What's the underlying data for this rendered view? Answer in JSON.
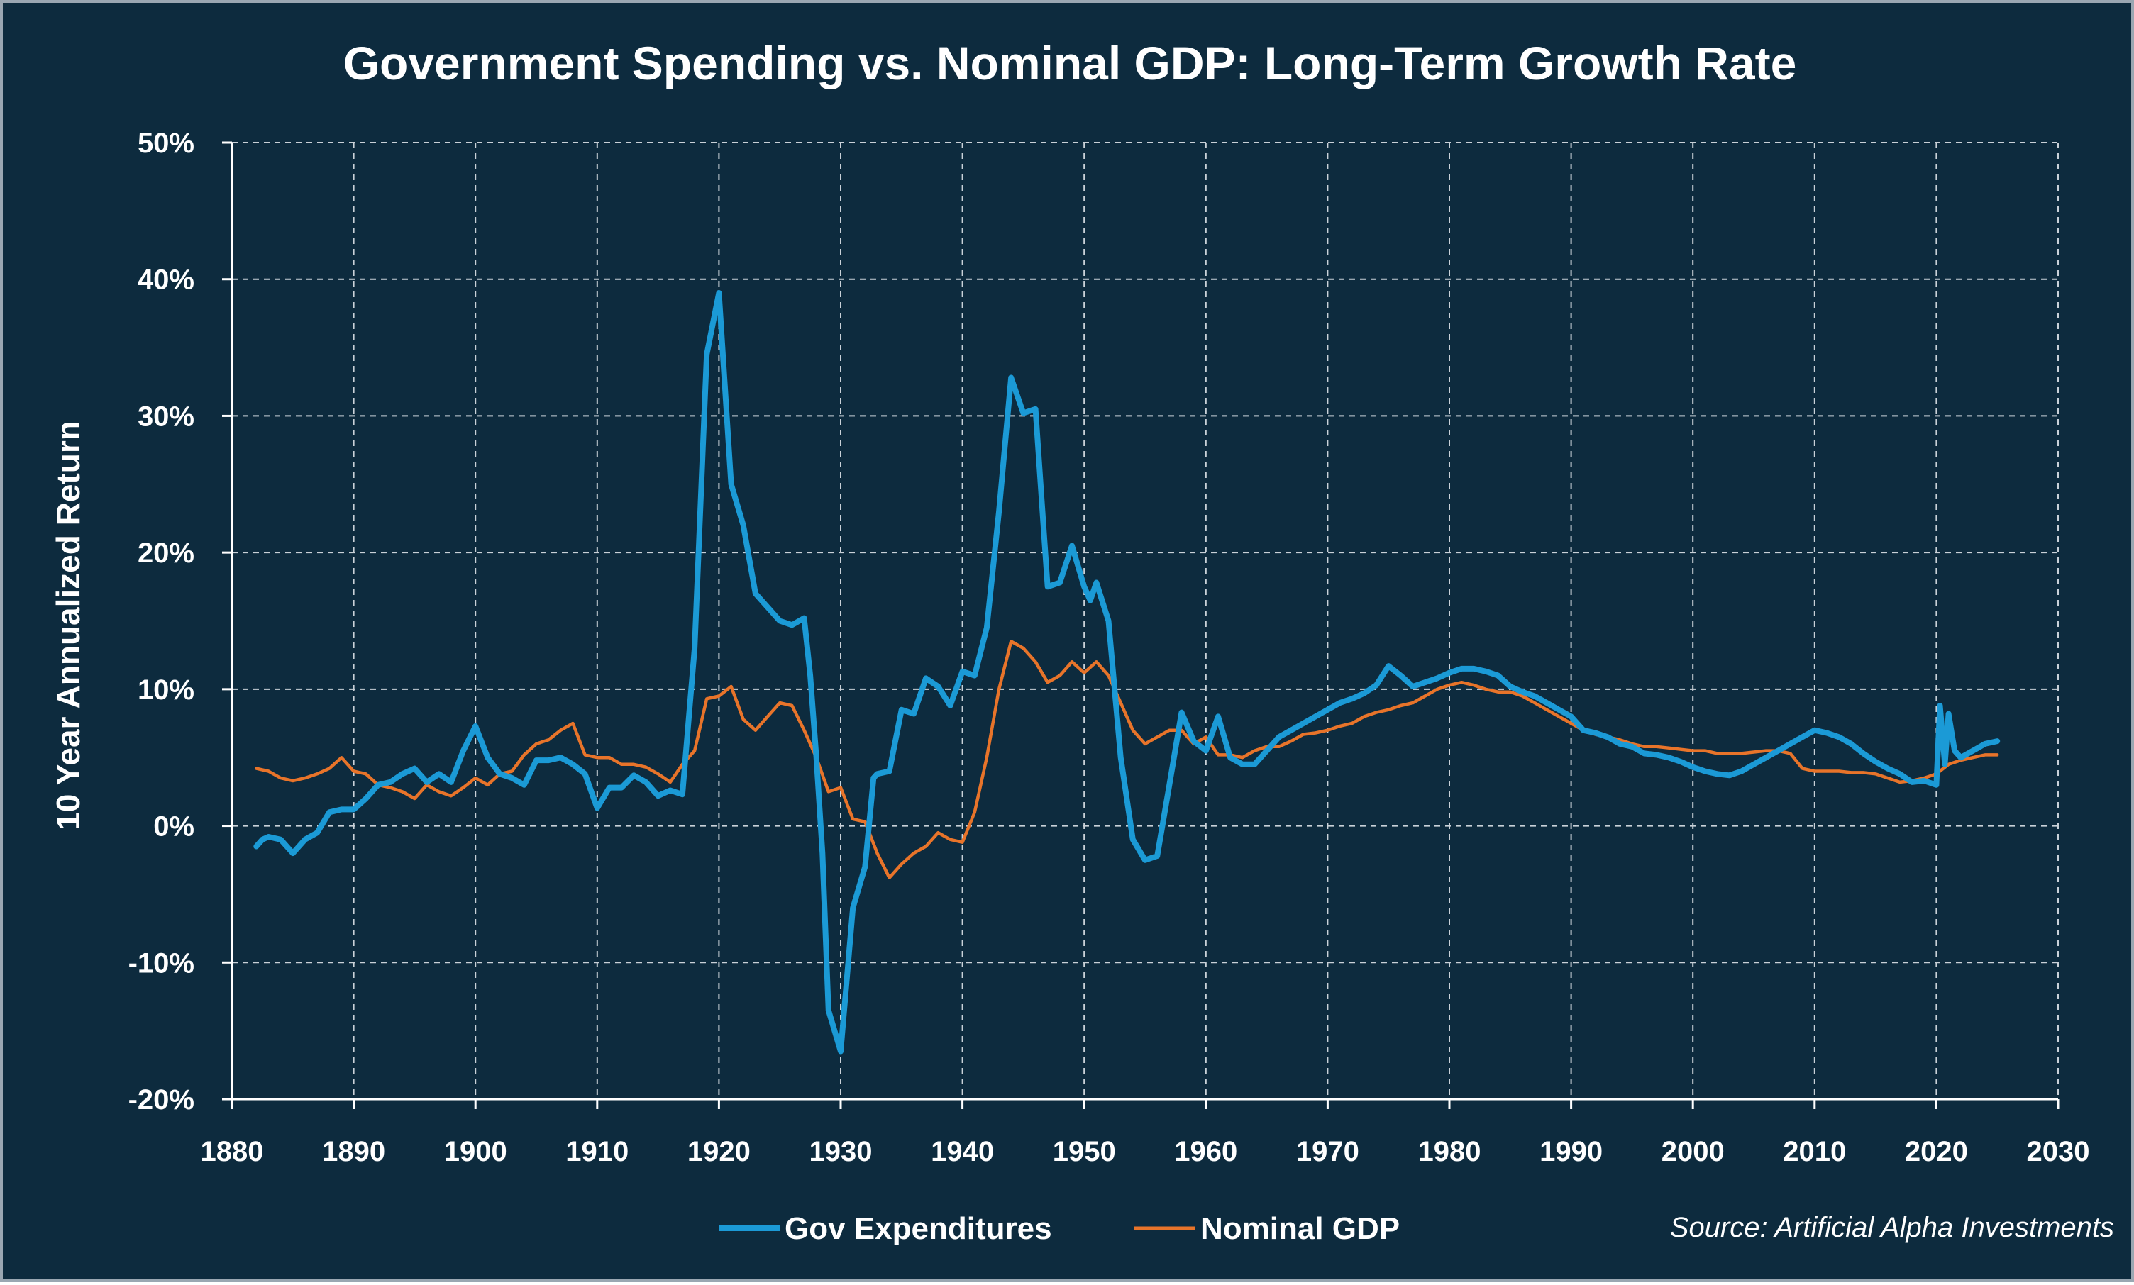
{
  "title": "Government Spending vs. Nominal GDP: Long-Term Growth Rate",
  "source": "Source: Artificial Alpha Investments",
  "colors": {
    "background": "#0d2b3e",
    "gov_series": "#1b9ad6",
    "gdp_series": "#e8742a",
    "grid": "#c9d1d8",
    "text": "#ffffff"
  },
  "chart_data": {
    "type": "line",
    "title": "Government Spending vs. Nominal GDP: Long-Term Growth Rate",
    "xlabel": "",
    "ylabel": "10 Year Annualized Return",
    "xlim": [
      1880,
      2030
    ],
    "ylim": [
      -20,
      50
    ],
    "x_ticks": [
      1880,
      1890,
      1900,
      1910,
      1920,
      1930,
      1940,
      1950,
      1960,
      1970,
      1980,
      1990,
      2000,
      2010,
      2020,
      2030
    ],
    "x_tick_labels": [
      "1880",
      "1890",
      "1900",
      "1910",
      "1920",
      "1930",
      "1940",
      "1950",
      "1960",
      "1970",
      "1980",
      "1990",
      "2000",
      "2010",
      "2020",
      "2030"
    ],
    "y_ticks": [
      -20,
      -10,
      0,
      10,
      20,
      30,
      40,
      50
    ],
    "y_tick_labels": [
      "-20%",
      "-10%",
      "0%",
      "10%",
      "20%",
      "30%",
      "40%",
      "50%"
    ],
    "grid": true,
    "legend_position": "bottom",
    "series": [
      {
        "name": "Gov Expenditures",
        "color": "#1b9ad6",
        "points": [
          [
            1882,
            -1.5
          ],
          [
            1882.5,
            -1
          ],
          [
            1883,
            -0.8
          ],
          [
            1884,
            -1
          ],
          [
            1885,
            -2
          ],
          [
            1886,
            -1
          ],
          [
            1887,
            -0.5
          ],
          [
            1888,
            1
          ],
          [
            1889,
            1.2
          ],
          [
            1890,
            1.2
          ],
          [
            1891,
            2
          ],
          [
            1892,
            3
          ],
          [
            1893,
            3.2
          ],
          [
            1894,
            3.8
          ],
          [
            1895,
            4.2
          ],
          [
            1896,
            3.2
          ],
          [
            1897,
            3.8
          ],
          [
            1898,
            3.2
          ],
          [
            1899,
            5.5
          ],
          [
            1900,
            7.3
          ],
          [
            1901,
            5
          ],
          [
            1902,
            3.8
          ],
          [
            1903,
            3.5
          ],
          [
            1904,
            3
          ],
          [
            1905,
            4.8
          ],
          [
            1906,
            4.8
          ],
          [
            1907,
            5
          ],
          [
            1908,
            4.5
          ],
          [
            1909,
            3.8
          ],
          [
            1910,
            1.3
          ],
          [
            1911,
            2.8
          ],
          [
            1912,
            2.8
          ],
          [
            1913,
            3.7
          ],
          [
            1914,
            3.2
          ],
          [
            1915,
            2.2
          ],
          [
            1916,
            2.6
          ],
          [
            1917,
            2.3
          ],
          [
            1918,
            13
          ],
          [
            1919,
            34.5
          ],
          [
            1920,
            39
          ],
          [
            1921,
            25
          ],
          [
            1922,
            22
          ],
          [
            1923,
            17
          ],
          [
            1924,
            16
          ],
          [
            1925,
            15
          ],
          [
            1926,
            14.7
          ],
          [
            1927,
            15.2
          ],
          [
            1927.5,
            11
          ],
          [
            1928,
            5
          ],
          [
            1928.5,
            -2
          ],
          [
            1929,
            -13.5
          ],
          [
            1930,
            -16.5
          ],
          [
            1931,
            -6
          ],
          [
            1932,
            -3
          ],
          [
            1932.7,
            3.5
          ],
          [
            1933,
            3.8
          ],
          [
            1934,
            4
          ],
          [
            1935,
            8.5
          ],
          [
            1936,
            8.2
          ],
          [
            1937,
            10.8
          ],
          [
            1938,
            10.2
          ],
          [
            1939,
            8.8
          ],
          [
            1940,
            11.3
          ],
          [
            1941,
            11
          ],
          [
            1942,
            14.5
          ],
          [
            1943,
            23
          ],
          [
            1944,
            32.8
          ],
          [
            1945,
            30.2
          ],
          [
            1946,
            30.5
          ],
          [
            1946.5,
            24
          ],
          [
            1947,
            17.5
          ],
          [
            1948,
            17.8
          ],
          [
            1949,
            20.5
          ],
          [
            1950,
            17.5
          ],
          [
            1950.5,
            16.5
          ],
          [
            1951,
            17.8
          ],
          [
            1952,
            15
          ],
          [
            1953,
            5
          ],
          [
            1954,
            -1
          ],
          [
            1955,
            -2.5
          ],
          [
            1956,
            -2.2
          ],
          [
            1957,
            3
          ],
          [
            1958,
            8.3
          ],
          [
            1959,
            6.2
          ],
          [
            1960,
            5.5
          ],
          [
            1961,
            8
          ],
          [
            1962,
            5
          ],
          [
            1963,
            4.5
          ],
          [
            1964,
            4.5
          ],
          [
            1965,
            5.5
          ],
          [
            1966,
            6.5
          ],
          [
            1967,
            7
          ],
          [
            1968,
            7.5
          ],
          [
            1969,
            8
          ],
          [
            1970,
            8.5
          ],
          [
            1971,
            9
          ],
          [
            1972,
            9.3
          ],
          [
            1973,
            9.7
          ],
          [
            1974,
            10.3
          ],
          [
            1975,
            11.7
          ],
          [
            1976,
            11
          ],
          [
            1977,
            10.2
          ],
          [
            1978,
            10.5
          ],
          [
            1979,
            10.8
          ],
          [
            1980,
            11.2
          ],
          [
            1981,
            11.5
          ],
          [
            1982,
            11.5
          ],
          [
            1983,
            11.3
          ],
          [
            1984,
            11
          ],
          [
            1985,
            10.2
          ],
          [
            1986,
            9.8
          ],
          [
            1987,
            9.5
          ],
          [
            1988,
            9
          ],
          [
            1989,
            8.5
          ],
          [
            1990,
            8
          ],
          [
            1991,
            7
          ],
          [
            1992,
            6.8
          ],
          [
            1993,
            6.5
          ],
          [
            1994,
            6
          ],
          [
            1995,
            5.8
          ],
          [
            1996,
            5.3
          ],
          [
            1997,
            5.2
          ],
          [
            1998,
            5
          ],
          [
            1999,
            4.7
          ],
          [
            2000,
            4.3
          ],
          [
            2001,
            4
          ],
          [
            2002,
            3.8
          ],
          [
            2003,
            3.7
          ],
          [
            2004,
            4
          ],
          [
            2005,
            4.5
          ],
          [
            2006,
            5
          ],
          [
            2007,
            5.5
          ],
          [
            2008,
            6
          ],
          [
            2009,
            6.5
          ],
          [
            2010,
            7
          ],
          [
            2011,
            6.8
          ],
          [
            2012,
            6.5
          ],
          [
            2013,
            6
          ],
          [
            2014,
            5.3
          ],
          [
            2015,
            4.7
          ],
          [
            2016,
            4.2
          ],
          [
            2017,
            3.8
          ],
          [
            2018,
            3.2
          ],
          [
            2019,
            3.3
          ],
          [
            2020,
            3
          ],
          [
            2020.3,
            8.8
          ],
          [
            2020.7,
            4.5
          ],
          [
            2021,
            8.2
          ],
          [
            2021.5,
            5.5
          ],
          [
            2022,
            5
          ],
          [
            2023,
            5.5
          ],
          [
            2024,
            6
          ],
          [
            2025,
            6.2
          ]
        ]
      },
      {
        "name": "Nominal GDP",
        "color": "#e8742a",
        "points": [
          [
            1882,
            4.2
          ],
          [
            1883,
            4
          ],
          [
            1884,
            3.5
          ],
          [
            1885,
            3.3
          ],
          [
            1886,
            3.5
          ],
          [
            1887,
            3.8
          ],
          [
            1888,
            4.2
          ],
          [
            1889,
            5
          ],
          [
            1890,
            4
          ],
          [
            1891,
            3.8
          ],
          [
            1892,
            3
          ],
          [
            1893,
            2.8
          ],
          [
            1894,
            2.5
          ],
          [
            1895,
            2
          ],
          [
            1896,
            3
          ],
          [
            1897,
            2.5
          ],
          [
            1898,
            2.2
          ],
          [
            1899,
            2.8
          ],
          [
            1900,
            3.5
          ],
          [
            1901,
            3
          ],
          [
            1902,
            3.8
          ],
          [
            1903,
            4
          ],
          [
            1904,
            5.2
          ],
          [
            1905,
            6
          ],
          [
            1906,
            6.3
          ],
          [
            1907,
            7
          ],
          [
            1908,
            7.5
          ],
          [
            1909,
            5.2
          ],
          [
            1910,
            5
          ],
          [
            1911,
            5
          ],
          [
            1912,
            4.5
          ],
          [
            1913,
            4.5
          ],
          [
            1914,
            4.3
          ],
          [
            1915,
            3.8
          ],
          [
            1916,
            3.2
          ],
          [
            1917,
            4.5
          ],
          [
            1918,
            5.5
          ],
          [
            1919,
            9.3
          ],
          [
            1920,
            9.5
          ],
          [
            1921,
            10.2
          ],
          [
            1922,
            7.8
          ],
          [
            1923,
            7
          ],
          [
            1924,
            8
          ],
          [
            1925,
            9
          ],
          [
            1926,
            8.8
          ],
          [
            1927,
            7
          ],
          [
            1928,
            5
          ],
          [
            1929,
            2.5
          ],
          [
            1930,
            2.8
          ],
          [
            1931,
            0.5
          ],
          [
            1932,
            0.3
          ],
          [
            1933,
            -2
          ],
          [
            1934,
            -3.8
          ],
          [
            1935,
            -2.8
          ],
          [
            1936,
            -2
          ],
          [
            1937,
            -1.5
          ],
          [
            1938,
            -0.5
          ],
          [
            1939,
            -1
          ],
          [
            1940,
            -1.2
          ],
          [
            1941,
            1
          ],
          [
            1942,
            5
          ],
          [
            1943,
            10
          ],
          [
            1944,
            13.5
          ],
          [
            1945,
            13
          ],
          [
            1946,
            12
          ],
          [
            1947,
            10.5
          ],
          [
            1948,
            11
          ],
          [
            1949,
            12
          ],
          [
            1950,
            11.2
          ],
          [
            1951,
            12
          ],
          [
            1952,
            11
          ],
          [
            1953,
            9
          ],
          [
            1954,
            7
          ],
          [
            1955,
            6
          ],
          [
            1956,
            6.5
          ],
          [
            1957,
            7
          ],
          [
            1958,
            7
          ],
          [
            1959,
            6
          ],
          [
            1960,
            6.5
          ],
          [
            1961,
            5.2
          ],
          [
            1962,
            5.2
          ],
          [
            1963,
            5
          ],
          [
            1964,
            5.5
          ],
          [
            1965,
            5.8
          ],
          [
            1966,
            5.8
          ],
          [
            1967,
            6.2
          ],
          [
            1968,
            6.7
          ],
          [
            1969,
            6.8
          ],
          [
            1970,
            7
          ],
          [
            1971,
            7.3
          ],
          [
            1972,
            7.5
          ],
          [
            1973,
            8
          ],
          [
            1974,
            8.3
          ],
          [
            1975,
            8.5
          ],
          [
            1976,
            8.8
          ],
          [
            1977,
            9
          ],
          [
            1978,
            9.5
          ],
          [
            1979,
            10
          ],
          [
            1980,
            10.3
          ],
          [
            1981,
            10.5
          ],
          [
            1982,
            10.3
          ],
          [
            1983,
            10
          ],
          [
            1984,
            9.8
          ],
          [
            1985,
            9.8
          ],
          [
            1986,
            9.5
          ],
          [
            1987,
            9
          ],
          [
            1988,
            8.5
          ],
          [
            1989,
            8
          ],
          [
            1990,
            7.5
          ],
          [
            1991,
            7
          ],
          [
            1992,
            6.7
          ],
          [
            1993,
            6.5
          ],
          [
            1994,
            6.3
          ],
          [
            1995,
            6
          ],
          [
            1996,
            5.8
          ],
          [
            1997,
            5.8
          ],
          [
            1998,
            5.7
          ],
          [
            1999,
            5.6
          ],
          [
            2000,
            5.5
          ],
          [
            2001,
            5.5
          ],
          [
            2002,
            5.3
          ],
          [
            2003,
            5.3
          ],
          [
            2004,
            5.3
          ],
          [
            2005,
            5.4
          ],
          [
            2006,
            5.5
          ],
          [
            2007,
            5.5
          ],
          [
            2008,
            5.3
          ],
          [
            2009,
            4.2
          ],
          [
            2010,
            4
          ],
          [
            2011,
            4
          ],
          [
            2012,
            4
          ],
          [
            2013,
            3.9
          ],
          [
            2014,
            3.9
          ],
          [
            2015,
            3.8
          ],
          [
            2016,
            3.5
          ],
          [
            2017,
            3.2
          ],
          [
            2018,
            3.3
          ],
          [
            2019,
            3.5
          ],
          [
            2020,
            3.8
          ],
          [
            2021,
            4.5
          ],
          [
            2022,
            4.8
          ],
          [
            2023,
            5
          ],
          [
            2024,
            5.2
          ],
          [
            2025,
            5.2
          ]
        ]
      }
    ]
  }
}
